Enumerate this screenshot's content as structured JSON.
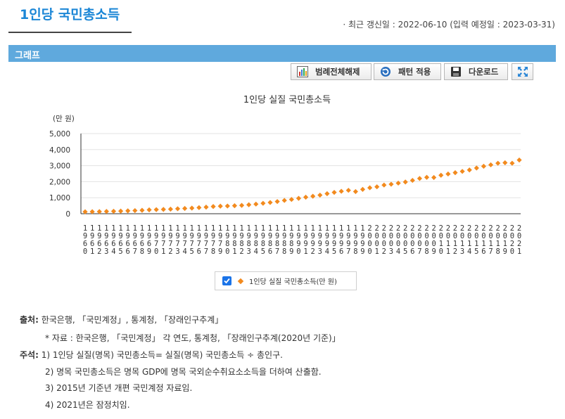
{
  "header": {
    "title": "1인당 국민총소득",
    "update_info": "· 최근 갱신일 : 2022-06-10 (입력 예정일 : 2023-03-31)"
  },
  "section": {
    "title": "그래프"
  },
  "toolbar": {
    "legend_toggle_label": "범례전체해제",
    "pattern_apply_label": "패턴 적용",
    "download_label": "다운로드"
  },
  "chart_data": {
    "type": "scatter",
    "title": "1인당 실질 국민총소득",
    "ylabel": "(만 원)",
    "ylim": [
      0,
      5000
    ],
    "yticks": [
      "5,000",
      "4,000",
      "3,000",
      "2,000",
      "1,000",
      "0"
    ],
    "x": [
      "1960",
      "1961",
      "1962",
      "1963",
      "1964",
      "1965",
      "1966",
      "1967",
      "1968",
      "1969",
      "1970",
      "1971",
      "1972",
      "1973",
      "1974",
      "1975",
      "1976",
      "1977",
      "1978",
      "1979",
      "1980",
      "1981",
      "1982",
      "1983",
      "1984",
      "1985",
      "1986",
      "1987",
      "1988",
      "1989",
      "1990",
      "1991",
      "1992",
      "1993",
      "1994",
      "1995",
      "1996",
      "1997",
      "1998",
      "1999",
      "2000",
      "2001",
      "2002",
      "2003",
      "2004",
      "2005",
      "2006",
      "2007",
      "2008",
      "2009",
      "2010",
      "2011",
      "2012",
      "2013",
      "2014",
      "2015",
      "2016",
      "2017",
      "2018",
      "2019",
      "2020",
      "2021"
    ],
    "series": [
      {
        "name": "1인당 실질 국민총소득(만 원)",
        "color": "#f28a1e",
        "marker": "diamond",
        "values": [
          120,
          125,
          130,
          145,
          155,
          165,
          180,
          195,
          215,
          240,
          255,
          270,
          285,
          310,
          330,
          350,
          380,
          410,
          450,
          470,
          480,
          500,
          520,
          560,
          600,
          650,
          700,
          760,
          830,
          890,
          960,
          1030,
          1090,
          1160,
          1250,
          1330,
          1400,
          1460,
          1380,
          1520,
          1620,
          1680,
          1790,
          1840,
          1910,
          1980,
          2080,
          2200,
          2270,
          2260,
          2400,
          2480,
          2560,
          2640,
          2730,
          2850,
          2960,
          3050,
          3150,
          3180,
          3150,
          3350
        ]
      }
    ],
    "legend": {
      "position": "bottom",
      "checked": true
    },
    "grid": true
  },
  "notes": {
    "source_label": "출처:",
    "source_text": "한국은행, 「국민계정」, 통계청, 「장래인구추계」",
    "source_sub": "* 자료 : 한국은행, 「국민계정」 각 연도, 통계청, 「장래인구추계(2020년 기준)」",
    "comment_label": "주석:",
    "comments": [
      "1) 1인당 실질(명목) 국민총소득= 실질(명목) 국민총소득 ÷ 총인구.",
      "2) 명목 국민총소득은 명목 GDP에 명목 국외순수취요소소득을 더하여 산출함.",
      "3) 2015년 기준년 개편 국민계정 자료임.",
      "4) 2021년은 잠정치임."
    ]
  }
}
